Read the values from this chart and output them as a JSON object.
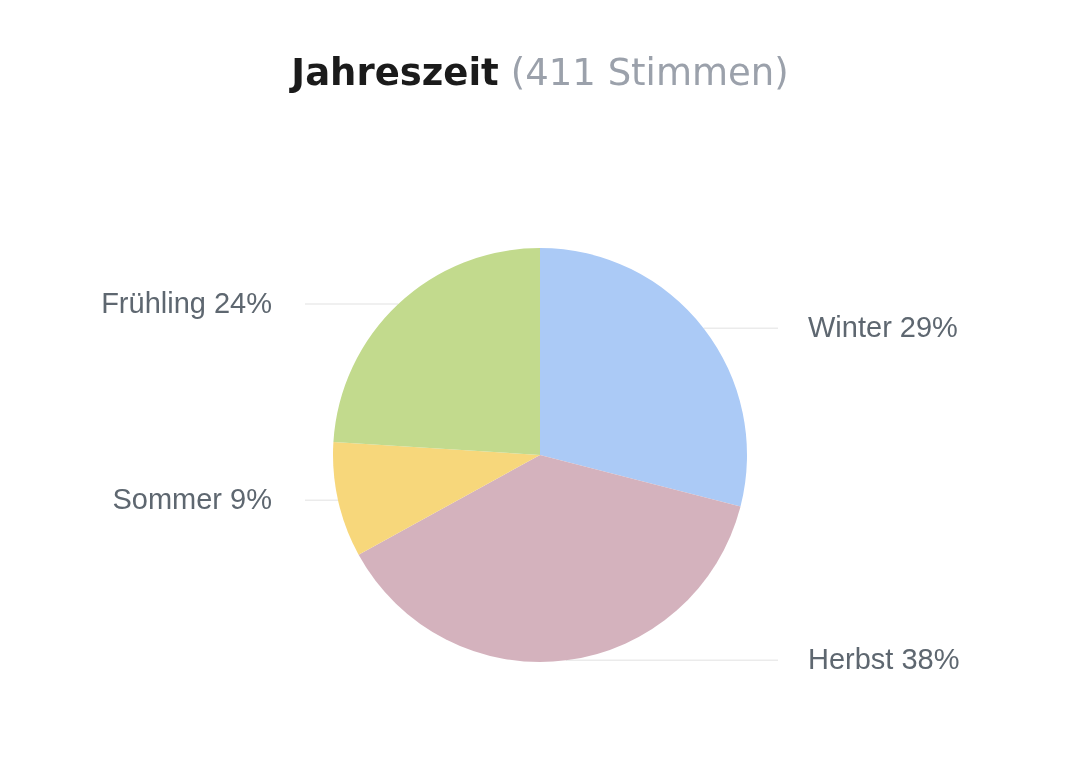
{
  "chart_data": {
    "type": "pie",
    "title": "Jahreszeit",
    "subtitle": "(411 Stimmen)",
    "categories": [
      "Winter",
      "Herbst",
      "Sommer",
      "Frühling"
    ],
    "values": [
      29,
      38,
      9,
      24
    ],
    "colors": [
      "#abcaf6",
      "#d4b2bd",
      "#f7d77b",
      "#c2da8d"
    ],
    "value_labels": [
      "29%",
      "38%",
      "9%",
      "24%"
    ],
    "legend": false
  }
}
